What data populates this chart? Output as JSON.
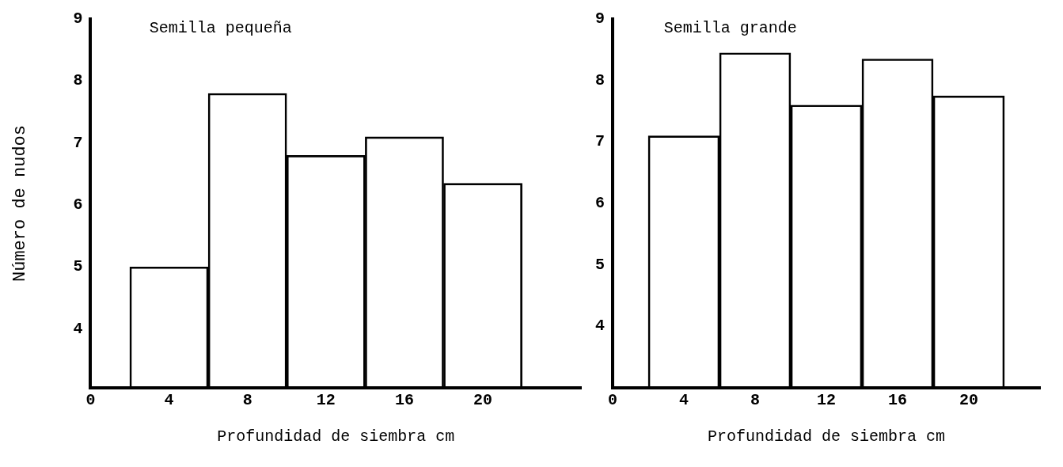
{
  "chart_data": [
    {
      "type": "bar",
      "title": "Semilla pequeña",
      "xlabel": "Profundidad de siembra cm",
      "ylabel": "Número de nudos",
      "x": [
        4,
        8,
        12,
        16,
        20
      ],
      "values": [
        5.0,
        7.8,
        6.8,
        7.1,
        6.35
      ],
      "color": "#000000",
      "xlim": [
        0,
        25
      ],
      "xticks": [
        0,
        4,
        8,
        12,
        16,
        20
      ],
      "ylim": [
        3.05,
        9
      ],
      "yticks": [
        4,
        5,
        6,
        7,
        8,
        9
      ],
      "grid": false
    },
    {
      "type": "bar",
      "title": "Semilla grande",
      "xlabel": "Profundidad de siembra cm",
      "x": [
        4,
        8,
        12,
        16,
        20
      ],
      "values": [
        7.1,
        8.45,
        7.6,
        8.35,
        7.75
      ],
      "color": "#000000",
      "xlim": [
        0,
        24
      ],
      "xticks": [
        0,
        4,
        8,
        12,
        16,
        20
      ],
      "ylim": [
        3,
        9
      ],
      "yticks": [
        4,
        5,
        6,
        7,
        8,
        9
      ],
      "grid": false
    }
  ]
}
